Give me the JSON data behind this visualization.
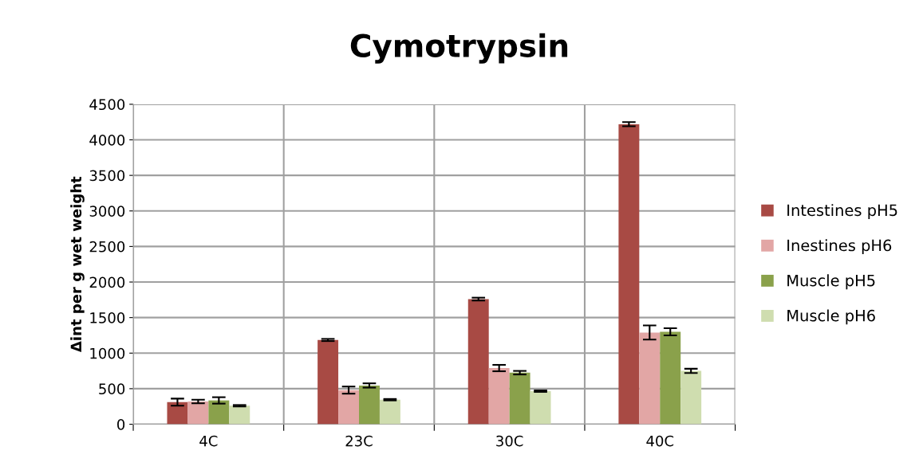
{
  "chart_data": {
    "type": "bar",
    "title": "Cymotrypsin",
    "ylabel": "Δint per g wet weight",
    "categories": [
      "4C",
      "23C",
      "30C",
      "40C"
    ],
    "series": [
      {
        "name": "Intestines pH5",
        "color": "#a84a44",
        "values": [
          310,
          1185,
          1760,
          4220
        ],
        "errors": [
          50,
          15,
          20,
          30
        ]
      },
      {
        "name": "Inestines pH6",
        "color": "#e2a6a5",
        "values": [
          320,
          480,
          790,
          1290
        ],
        "errors": [
          25,
          50,
          45,
          100
        ]
      },
      {
        "name": "Muscle pH5",
        "color": "#8aa14b",
        "values": [
          335,
          545,
          725,
          1300
        ],
        "errors": [
          45,
          30,
          25,
          50
        ]
      },
      {
        "name": "Muscle pH6",
        "color": "#cfddaf",
        "values": [
          260,
          345,
          465,
          750
        ],
        "errors": [
          10,
          10,
          10,
          30
        ]
      }
    ],
    "ylim": [
      0,
      4500
    ],
    "yticks": [
      0,
      500,
      1000,
      1500,
      2000,
      2500,
      3000,
      3500,
      4000,
      4500
    ],
    "grid": true,
    "legend": "right"
  }
}
